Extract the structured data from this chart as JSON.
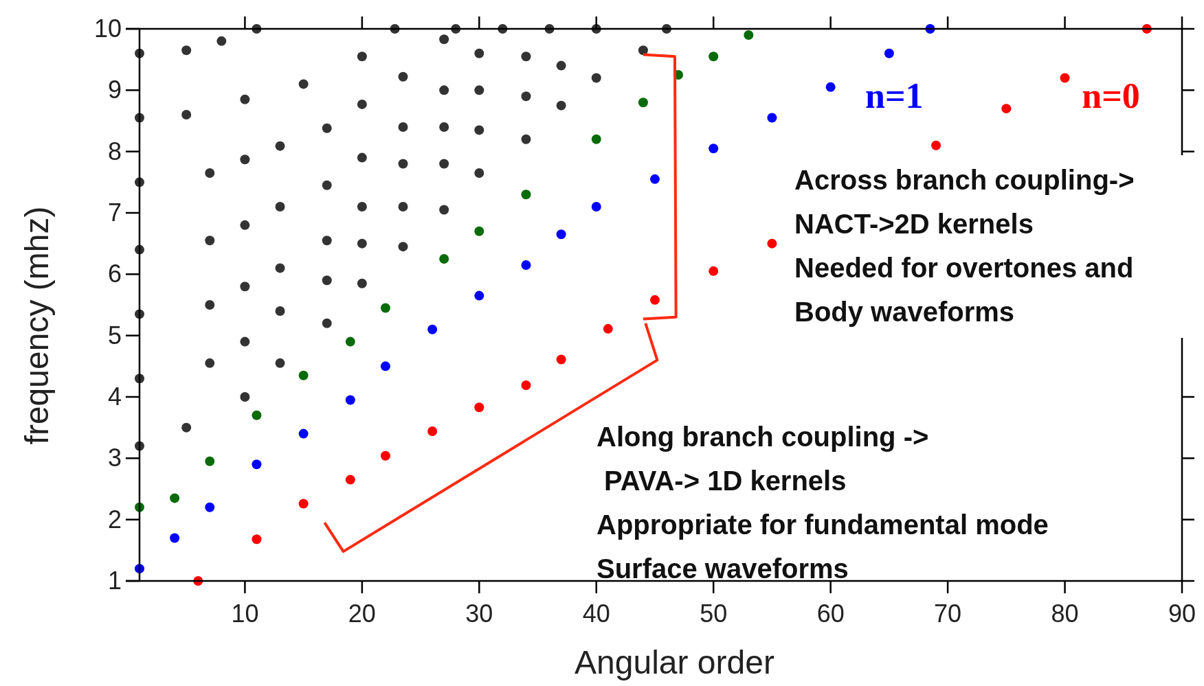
{
  "chart_data": {
    "type": "scatter",
    "xlabel": "Angular order",
    "ylabel": "frequency (mhz)",
    "xlim": [
      1,
      90
    ],
    "ylim": [
      1,
      10
    ],
    "xticks": [
      10,
      20,
      30,
      40,
      50,
      60,
      70,
      80,
      90
    ],
    "yticks": [
      1,
      2,
      3,
      4,
      5,
      6,
      7,
      8,
      9,
      10
    ],
    "grid": false,
    "marker": "circle",
    "series": [
      {
        "color": "#333333",
        "x": [
          1,
          5,
          8,
          11
        ],
        "values": [
          9.6,
          9.65,
          9.8,
          10
        ]
      },
      {
        "color": "#333333",
        "x": [
          1,
          5,
          10,
          15,
          20,
          22.8
        ],
        "values": [
          8.55,
          8.6,
          8.85,
          9.1,
          9.55,
          10
        ]
      },
      {
        "color": "#333333",
        "x": [
          1,
          7,
          10,
          13,
          17,
          20,
          23.5,
          27,
          28
        ],
        "values": [
          7.5,
          7.65,
          7.87,
          8.09,
          8.38,
          8.77,
          9.22,
          9.83,
          10
        ]
      },
      {
        "color": "#333333",
        "x": [
          1,
          7,
          10,
          13,
          17,
          20,
          23.5,
          27,
          30,
          32
        ],
        "values": [
          6.4,
          6.55,
          6.8,
          7.1,
          7.45,
          7.9,
          8.4,
          9.0,
          9.6,
          10
        ]
      },
      {
        "color": "#333333",
        "x": [
          1,
          7,
          10,
          13,
          17,
          20,
          23.5,
          27,
          30,
          34,
          36
        ],
        "values": [
          5.35,
          5.5,
          5.8,
          6.1,
          6.55,
          7.1,
          7.8,
          8.4,
          9.0,
          9.55,
          10
        ]
      },
      {
        "color": "#333333",
        "x": [
          1,
          7,
          10,
          13,
          17,
          20,
          23.5,
          27,
          30,
          34,
          37,
          40
        ],
        "values": [
          4.3,
          4.55,
          4.9,
          5.4,
          5.9,
          6.5,
          7.1,
          7.8,
          8.35,
          8.9,
          9.4,
          10
        ]
      },
      {
        "color": "#333333",
        "x": [
          1,
          5,
          10,
          13,
          17,
          20,
          23.5,
          27,
          30,
          34,
          37,
          40,
          44,
          46
        ],
        "values": [
          3.2,
          3.5,
          4.0,
          4.55,
          5.2,
          5.85,
          6.45,
          7.05,
          7.65,
          8.2,
          8.75,
          9.2,
          9.65,
          10
        ]
      },
      {
        "color": "#0a6b0a",
        "x": [
          1,
          4,
          7,
          11,
          15,
          19,
          22,
          27,
          30,
          34,
          40,
          44,
          47,
          50,
          53
        ],
        "values": [
          2.2,
          2.35,
          2.95,
          3.7,
          4.35,
          4.9,
          5.45,
          6.25,
          6.7,
          7.3,
          8.2,
          8.8,
          9.25,
          9.55,
          9.9
        ]
      },
      {
        "name": "n=1",
        "color": "#0000ff",
        "x": [
          1,
          4,
          7,
          11,
          15,
          19,
          22,
          26,
          30,
          34,
          37,
          40,
          45,
          50,
          55,
          60,
          65,
          68.5
        ],
        "values": [
          1.2,
          1.7,
          2.2,
          2.9,
          3.4,
          3.95,
          4.5,
          5.1,
          5.65,
          6.15,
          6.65,
          7.1,
          7.55,
          8.05,
          8.55,
          9.05,
          9.6,
          10
        ]
      },
      {
        "name": "n=0",
        "color": "#ff0000",
        "x": [
          6,
          11,
          15,
          19,
          22,
          26,
          30,
          34,
          37,
          41,
          45,
          50,
          55,
          69,
          75,
          80,
          87
        ],
        "values": [
          1.0,
          1.68,
          2.26,
          2.65,
          3.04,
          3.44,
          3.83,
          4.19,
          4.61,
          5.11,
          5.58,
          6.05,
          6.5,
          8.1,
          8.7,
          9.2,
          10.0
        ]
      }
    ],
    "annotations": [
      "Across branch coupling->\nNACT->2D kernels\nNeeded for overtones and\nBody waveforms",
      "Along branch coupling ->\n PAVA-> 1D kernels\nAppropriate for fundamental mode\nSurface waveforms"
    ]
  }
}
